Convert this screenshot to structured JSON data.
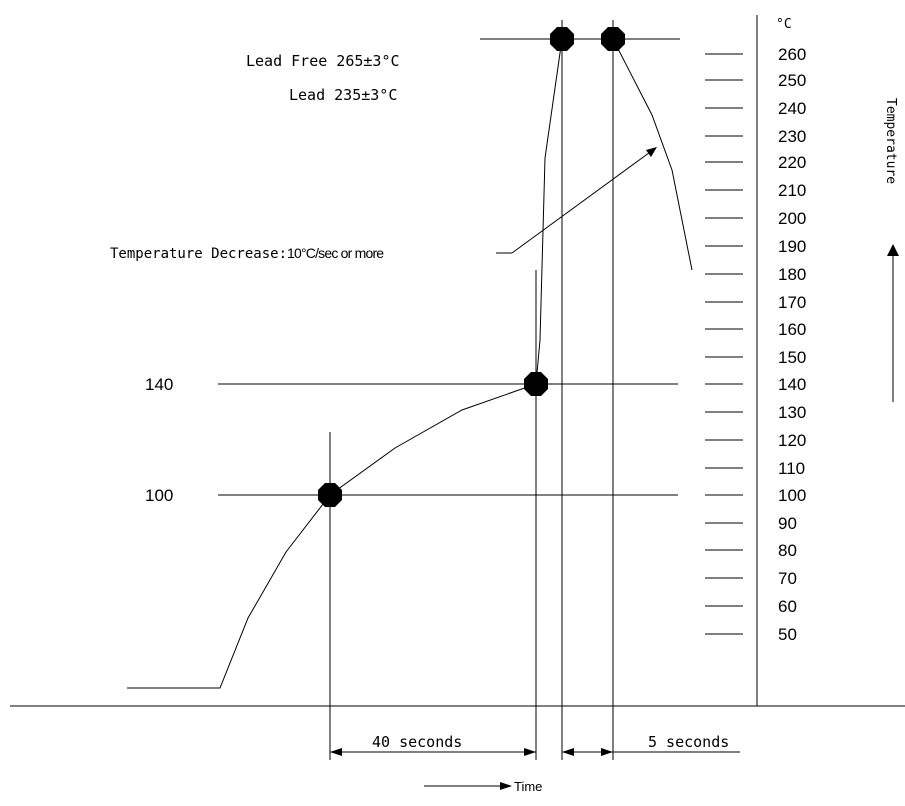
{
  "annotations": {
    "lead_free": "Lead Free 265±3°C",
    "lead": "Lead 235±3°C",
    "decrease_prefix": "Temperature Decrease:",
    "decrease_value": "10°C/sec or more",
    "left_140": "140",
    "left_100": "100",
    "interval_40": "40 seconds",
    "interval_5": "5 seconds",
    "time_label": "Time",
    "axis_title": "Temperature",
    "unit": "°C"
  },
  "scale": {
    "ticks": [
      "260",
      "250",
      "240",
      "230",
      "220",
      "210",
      "200",
      "190",
      "180",
      "170",
      "160",
      "150",
      "140",
      "130",
      "120",
      "110",
      "100",
      "90",
      "80",
      "70",
      "60",
      "50"
    ]
  }
}
